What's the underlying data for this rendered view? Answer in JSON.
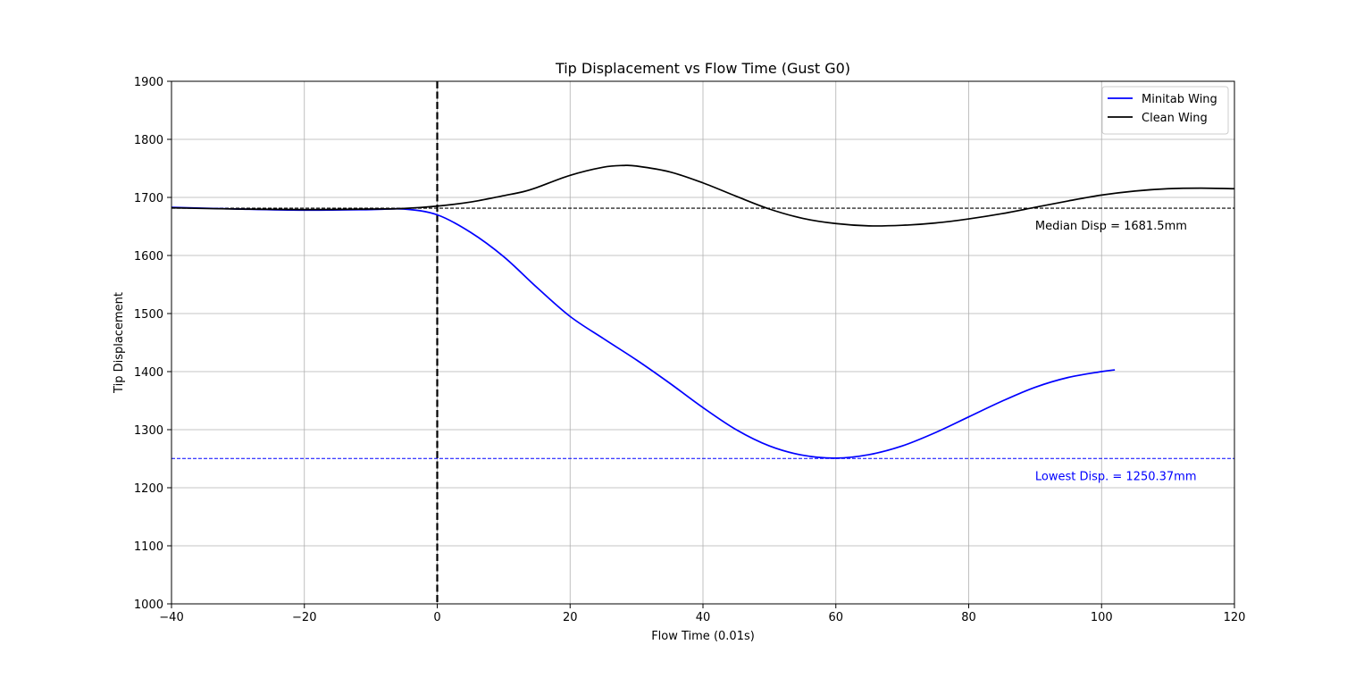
{
  "chart_data": {
    "type": "line",
    "title": "Tip Displacement vs Flow Time (Gust G0)",
    "xlabel": "Flow Time (0.01s)",
    "ylabel": "Tip Displacement",
    "xlim": [
      -40,
      120
    ],
    "ylim": [
      1000,
      1900
    ],
    "xticks": [
      -40,
      -20,
      0,
      20,
      40,
      60,
      80,
      100,
      120
    ],
    "yticks": [
      1000,
      1100,
      1200,
      1300,
      1400,
      1500,
      1600,
      1700,
      1800,
      1900
    ],
    "xtick_labels": [
      "−40",
      "−20",
      "0",
      "20",
      "40",
      "60",
      "80",
      "100",
      "120"
    ],
    "ytick_labels": [
      "1000",
      "1100",
      "1200",
      "1300",
      "1400",
      "1500",
      "1600",
      "1700",
      "1800",
      "1900"
    ],
    "grid": true,
    "legend_position": "top-right",
    "series": [
      {
        "name": "Minitab Wing",
        "color": "#0000ff",
        "x": [
          -40,
          -30,
          -20,
          -10,
          -5,
          0,
          5,
          10,
          15,
          20,
          25,
          30,
          35,
          40,
          45,
          50,
          55,
          60,
          65,
          70,
          75,
          80,
          85,
          90,
          95,
          100,
          102
        ],
        "y": [
          1683,
          1680,
          1678,
          1679,
          1680,
          1670,
          1640,
          1598,
          1545,
          1495,
          1457,
          1420,
          1380,
          1338,
          1300,
          1272,
          1256,
          1251,
          1257,
          1272,
          1295,
          1322,
          1349,
          1373,
          1390,
          1400,
          1403
        ]
      },
      {
        "name": "Clean Wing",
        "color": "#000000",
        "x": [
          -40,
          -30,
          -20,
          -10,
          -5,
          0,
          5,
          10,
          13,
          15,
          20,
          25,
          28,
          30,
          35,
          40,
          45,
          50,
          55,
          60,
          65,
          70,
          75,
          80,
          85,
          90,
          95,
          100,
          105,
          110,
          115,
          120
        ],
        "y": [
          1682,
          1680,
          1679,
          1680,
          1681,
          1685,
          1692,
          1703,
          1710,
          1717,
          1738,
          1752,
          1755,
          1754,
          1744,
          1725,
          1702,
          1680,
          1664,
          1655,
          1651,
          1652,
          1656,
          1663,
          1672,
          1683,
          1694,
          1704,
          1711,
          1715,
          1716,
          1715
        ]
      }
    ],
    "reference_lines": [
      {
        "orientation": "vertical",
        "x": 0,
        "color": "#000000",
        "style": "dashed"
      },
      {
        "orientation": "horizontal",
        "y": 1681.5,
        "color": "#000000",
        "style": "dashed",
        "label": "Median Disp = 1681.5mm",
        "label_x": 90
      },
      {
        "orientation": "horizontal",
        "y": 1250.37,
        "color": "#0000ff",
        "style": "dashed",
        "label": "Lowest Disp. = 1250.37mm",
        "label_x": 90
      }
    ]
  }
}
